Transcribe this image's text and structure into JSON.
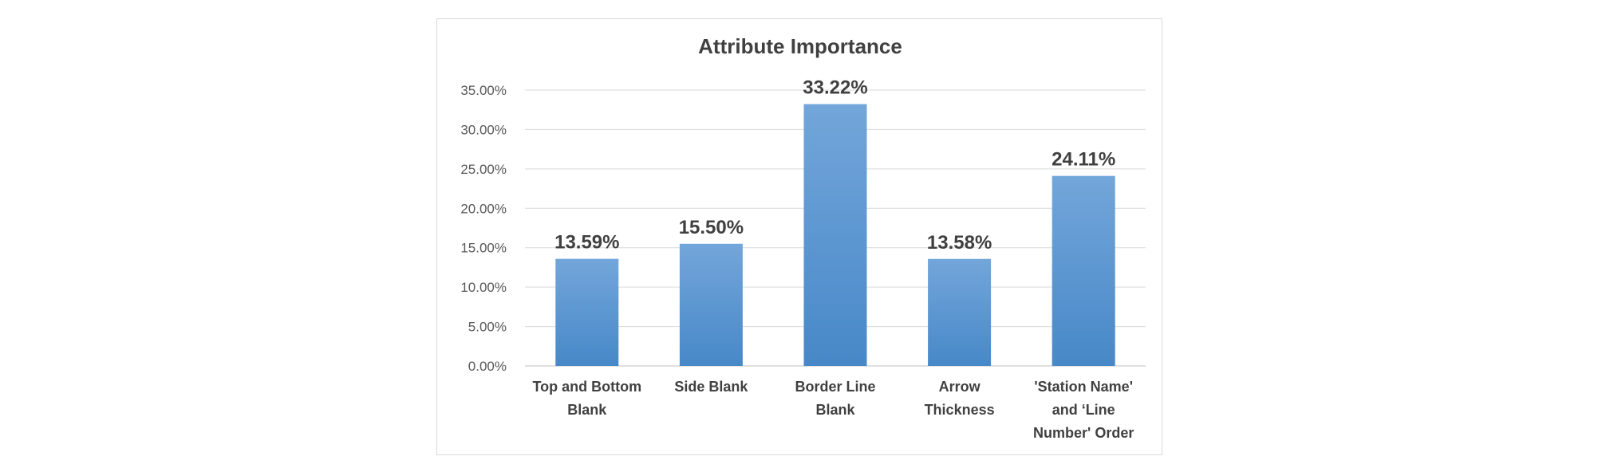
{
  "chart_data": {
    "type": "bar",
    "title": "Attribute Importance",
    "xlabel": "",
    "ylabel": "",
    "categories": [
      [
        "Top and Bottom",
        "Blank"
      ],
      [
        "Side Blank"
      ],
      [
        "Border Line",
        "Blank"
      ],
      [
        "Arrow",
        "Thickness"
      ],
      [
        "'Station Name'",
        "and ‘Line",
        "Number' Order"
      ]
    ],
    "values": [
      13.59,
      15.5,
      33.22,
      13.58,
      24.11
    ],
    "data_labels": [
      "13.59%",
      "15.50%",
      "33.22%",
      "13.58%",
      "24.11%"
    ],
    "ylim": [
      0,
      35
    ],
    "yticks": [
      0,
      5,
      10,
      15,
      20,
      25,
      30,
      35
    ],
    "ytick_labels": [
      "0.00%",
      "5.00%",
      "10.00%",
      "15.00%",
      "20.00%",
      "25.00%",
      "30.00%",
      "35.00%"
    ],
    "grid": true,
    "legend": "none",
    "colors": {
      "bar_top": "#73a6da",
      "bar_bottom": "#4788c8",
      "grid": "#d9d9d9",
      "text": "#404040"
    }
  }
}
